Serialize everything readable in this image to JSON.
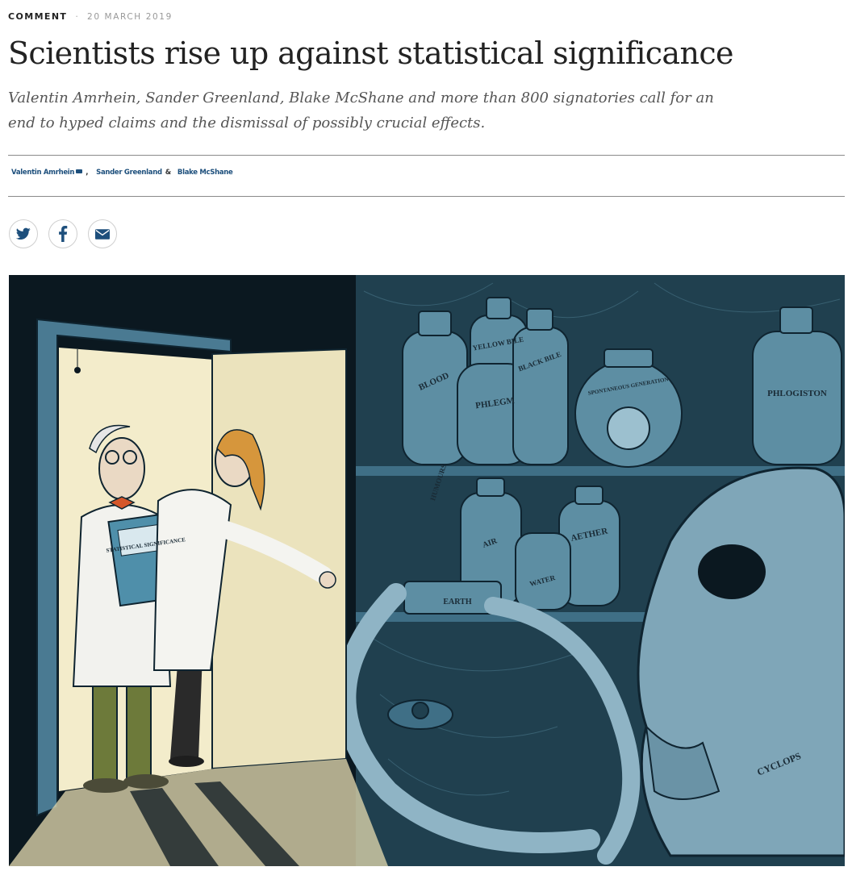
{
  "article": {
    "type": "COMMENT",
    "date": "20 MARCH 2019",
    "title": "Scientists rise up against statistical significance",
    "standfirst": "Valentin Amrhein, Sander Greenland, Blake McShane and more than 800 signatories call for an end to hyped claims and the dismissal of possibly crucial effects.",
    "authors": [
      "Valentin Amrhein",
      "Sander Greenland",
      "Blake McShane"
    ],
    "author_separator": ",",
    "author_and": "&"
  },
  "share": {
    "icons": [
      "twitter-icon",
      "facebook-icon",
      "email-icon"
    ]
  },
  "illustration": {
    "labels": {
      "book": "STATISTICAL SIGNIFICANCE",
      "blood": "BLOOD",
      "yellow_bile": "YELLOW BILE",
      "black_bile": "BLACK BILE",
      "phlegm": "PHLEGM",
      "spontaneous": "SPONTANEOUS GENERATION",
      "phlogiston": "PHLOGISTON",
      "humours": "HUMOURS",
      "air": "AIR",
      "aether": "AETHER",
      "water": "WATER",
      "earth": "EARTH",
      "cyclops": "CYCLOPS"
    }
  },
  "colors": {
    "link": "#1d4f7c",
    "rule": "#8a8a8a",
    "room": "#0b1820",
    "door": "#efe9c8",
    "shelf": "#3f6f86"
  }
}
